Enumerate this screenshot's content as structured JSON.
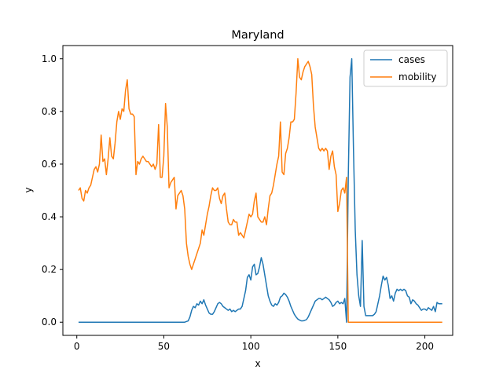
{
  "chart_data": {
    "type": "line",
    "title": "Maryland",
    "xlabel": "x",
    "ylabel": "y",
    "xlim": [
      -8,
      216
    ],
    "ylim": [
      -0.05,
      1.05
    ],
    "xticks": [
      0,
      50,
      100,
      150,
      200
    ],
    "yticks": [
      0.0,
      0.2,
      0.4,
      0.6,
      0.8,
      1.0
    ],
    "xtick_labels": [
      "0",
      "50",
      "100",
      "150",
      "200"
    ],
    "ytick_labels": [
      "0.0",
      "0.2",
      "0.4",
      "0.6",
      "0.8",
      "1.0"
    ],
    "legend_position": "top-right",
    "grid": false,
    "series": [
      {
        "name": "cases",
        "color": "#1f77b4",
        "points": [
          [
            1,
            0.0
          ],
          [
            10,
            0.0
          ],
          [
            20,
            0.0
          ],
          [
            30,
            0.0
          ],
          [
            40,
            0.0
          ],
          [
            50,
            0.0
          ],
          [
            60,
            0.0
          ],
          [
            62,
            0.0
          ],
          [
            64,
            0.005
          ],
          [
            65,
            0.02
          ],
          [
            66,
            0.045
          ],
          [
            67,
            0.06
          ],
          [
            68,
            0.055
          ],
          [
            69,
            0.07
          ],
          [
            70,
            0.065
          ],
          [
            71,
            0.08
          ],
          [
            72,
            0.07
          ],
          [
            73,
            0.085
          ],
          [
            74,
            0.065
          ],
          [
            75,
            0.05
          ],
          [
            76,
            0.035
          ],
          [
            77,
            0.03
          ],
          [
            78,
            0.03
          ],
          [
            79,
            0.04
          ],
          [
            80,
            0.055
          ],
          [
            81,
            0.07
          ],
          [
            82,
            0.075
          ],
          [
            83,
            0.07
          ],
          [
            84,
            0.06
          ],
          [
            85,
            0.055
          ],
          [
            86,
            0.05
          ],
          [
            87,
            0.045
          ],
          [
            88,
            0.05
          ],
          [
            89,
            0.04
          ],
          [
            90,
            0.045
          ],
          [
            91,
            0.04
          ],
          [
            92,
            0.045
          ],
          [
            93,
            0.05
          ],
          [
            94,
            0.05
          ],
          [
            95,
            0.06
          ],
          [
            96,
            0.09
          ],
          [
            97,
            0.12
          ],
          [
            98,
            0.17
          ],
          [
            99,
            0.18
          ],
          [
            100,
            0.16
          ],
          [
            101,
            0.21
          ],
          [
            102,
            0.22
          ],
          [
            103,
            0.18
          ],
          [
            104,
            0.185
          ],
          [
            105,
            0.21
          ],
          [
            106,
            0.245
          ],
          [
            107,
            0.22
          ],
          [
            108,
            0.18
          ],
          [
            109,
            0.14
          ],
          [
            110,
            0.1
          ],
          [
            111,
            0.08
          ],
          [
            112,
            0.065
          ],
          [
            113,
            0.06
          ],
          [
            114,
            0.07
          ],
          [
            115,
            0.065
          ],
          [
            116,
            0.075
          ],
          [
            117,
            0.095
          ],
          [
            118,
            0.1
          ],
          [
            119,
            0.11
          ],
          [
            120,
            0.105
          ],
          [
            121,
            0.095
          ],
          [
            122,
            0.08
          ],
          [
            123,
            0.06
          ],
          [
            124,
            0.045
          ],
          [
            125,
            0.03
          ],
          [
            126,
            0.02
          ],
          [
            127,
            0.012
          ],
          [
            128,
            0.008
          ],
          [
            129,
            0.005
          ],
          [
            130,
            0.005
          ],
          [
            131,
            0.007
          ],
          [
            132,
            0.01
          ],
          [
            133,
            0.02
          ],
          [
            134,
            0.035
          ],
          [
            135,
            0.05
          ],
          [
            136,
            0.065
          ],
          [
            137,
            0.08
          ],
          [
            138,
            0.085
          ],
          [
            139,
            0.09
          ],
          [
            140,
            0.09
          ],
          [
            141,
            0.085
          ],
          [
            142,
            0.09
          ],
          [
            143,
            0.095
          ],
          [
            144,
            0.09
          ],
          [
            145,
            0.085
          ],
          [
            146,
            0.075
          ],
          [
            147,
            0.06
          ],
          [
            148,
            0.065
          ],
          [
            149,
            0.075
          ],
          [
            150,
            0.08
          ],
          [
            151,
            0.07
          ],
          [
            152,
            0.075
          ],
          [
            153,
            0.07
          ],
          [
            154,
            0.09
          ],
          [
            155,
            0.0
          ],
          [
            156,
            0.55
          ],
          [
            157,
            0.93
          ],
          [
            158,
            1.0
          ],
          [
            159,
            0.65
          ],
          [
            160,
            0.35
          ],
          [
            161,
            0.18
          ],
          [
            162,
            0.1
          ],
          [
            163,
            0.06
          ],
          [
            164,
            0.31
          ],
          [
            165,
            0.06
          ],
          [
            166,
            0.025
          ],
          [
            167,
            0.025
          ],
          [
            168,
            0.025
          ],
          [
            169,
            0.025
          ],
          [
            170,
            0.025
          ],
          [
            171,
            0.03
          ],
          [
            172,
            0.04
          ],
          [
            173,
            0.07
          ],
          [
            174,
            0.1
          ],
          [
            175,
            0.14
          ],
          [
            176,
            0.175
          ],
          [
            177,
            0.16
          ],
          [
            178,
            0.17
          ],
          [
            179,
            0.14
          ],
          [
            180,
            0.09
          ],
          [
            181,
            0.1
          ],
          [
            182,
            0.08
          ],
          [
            183,
            0.11
          ],
          [
            184,
            0.125
          ],
          [
            185,
            0.12
          ],
          [
            186,
            0.125
          ],
          [
            187,
            0.12
          ],
          [
            188,
            0.125
          ],
          [
            189,
            0.12
          ],
          [
            190,
            0.1
          ],
          [
            191,
            0.095
          ],
          [
            192,
            0.07
          ],
          [
            193,
            0.085
          ],
          [
            194,
            0.08
          ],
          [
            195,
            0.07
          ],
          [
            196,
            0.065
          ],
          [
            197,
            0.055
          ],
          [
            198,
            0.045
          ],
          [
            199,
            0.05
          ],
          [
            200,
            0.05
          ],
          [
            201,
            0.045
          ],
          [
            202,
            0.055
          ],
          [
            203,
            0.05
          ],
          [
            204,
            0.045
          ],
          [
            205,
            0.06
          ],
          [
            206,
            0.04
          ],
          [
            207,
            0.075
          ],
          [
            208,
            0.07
          ],
          [
            209,
            0.07
          ],
          [
            210,
            0.07
          ]
        ]
      },
      {
        "name": "mobility",
        "color": "#ff7f0e",
        "points": [
          [
            1,
            0.5
          ],
          [
            2,
            0.51
          ],
          [
            3,
            0.47
          ],
          [
            4,
            0.46
          ],
          [
            5,
            0.5
          ],
          [
            6,
            0.49
          ],
          [
            7,
            0.51
          ],
          [
            8,
            0.52
          ],
          [
            9,
            0.55
          ],
          [
            10,
            0.58
          ],
          [
            11,
            0.59
          ],
          [
            12,
            0.57
          ],
          [
            13,
            0.6
          ],
          [
            14,
            0.71
          ],
          [
            15,
            0.61
          ],
          [
            16,
            0.62
          ],
          [
            17,
            0.56
          ],
          [
            18,
            0.62
          ],
          [
            19,
            0.7
          ],
          [
            20,
            0.63
          ],
          [
            21,
            0.62
          ],
          [
            22,
            0.68
          ],
          [
            23,
            0.76
          ],
          [
            24,
            0.8
          ],
          [
            25,
            0.77
          ],
          [
            26,
            0.81
          ],
          [
            27,
            0.8
          ],
          [
            28,
            0.88
          ],
          [
            29,
            0.92
          ],
          [
            30,
            0.81
          ],
          [
            31,
            0.79
          ],
          [
            32,
            0.79
          ],
          [
            33,
            0.78
          ],
          [
            34,
            0.56
          ],
          [
            35,
            0.61
          ],
          [
            36,
            0.6
          ],
          [
            37,
            0.62
          ],
          [
            38,
            0.63
          ],
          [
            39,
            0.62
          ],
          [
            40,
            0.61
          ],
          [
            41,
            0.61
          ],
          [
            42,
            0.6
          ],
          [
            43,
            0.59
          ],
          [
            44,
            0.6
          ],
          [
            45,
            0.58
          ],
          [
            46,
            0.6
          ],
          [
            47,
            0.75
          ],
          [
            48,
            0.55
          ],
          [
            49,
            0.55
          ],
          [
            50,
            0.63
          ],
          [
            51,
            0.83
          ],
          [
            52,
            0.74
          ],
          [
            53,
            0.51
          ],
          [
            54,
            0.53
          ],
          [
            55,
            0.54
          ],
          [
            56,
            0.55
          ],
          [
            57,
            0.43
          ],
          [
            58,
            0.48
          ],
          [
            59,
            0.49
          ],
          [
            60,
            0.5
          ],
          [
            61,
            0.48
          ],
          [
            62,
            0.43
          ],
          [
            63,
            0.3
          ],
          [
            64,
            0.25
          ],
          [
            65,
            0.22
          ],
          [
            66,
            0.2
          ],
          [
            67,
            0.22
          ],
          [
            68,
            0.24
          ],
          [
            69,
            0.26
          ],
          [
            70,
            0.28
          ],
          [
            71,
            0.3
          ],
          [
            72,
            0.35
          ],
          [
            73,
            0.33
          ],
          [
            74,
            0.37
          ],
          [
            75,
            0.41
          ],
          [
            76,
            0.44
          ],
          [
            77,
            0.48
          ],
          [
            78,
            0.51
          ],
          [
            79,
            0.5
          ],
          [
            80,
            0.5
          ],
          [
            81,
            0.51
          ],
          [
            82,
            0.47
          ],
          [
            83,
            0.45
          ],
          [
            84,
            0.48
          ],
          [
            85,
            0.49
          ],
          [
            86,
            0.43
          ],
          [
            87,
            0.38
          ],
          [
            88,
            0.37
          ],
          [
            89,
            0.37
          ],
          [
            90,
            0.39
          ],
          [
            91,
            0.38
          ],
          [
            92,
            0.38
          ],
          [
            93,
            0.33
          ],
          [
            94,
            0.34
          ],
          [
            95,
            0.33
          ],
          [
            96,
            0.32
          ],
          [
            97,
            0.35
          ],
          [
            98,
            0.38
          ],
          [
            99,
            0.41
          ],
          [
            100,
            0.4
          ],
          [
            101,
            0.41
          ],
          [
            102,
            0.46
          ],
          [
            103,
            0.49
          ],
          [
            104,
            0.4
          ],
          [
            105,
            0.39
          ],
          [
            106,
            0.38
          ],
          [
            107,
            0.38
          ],
          [
            108,
            0.4
          ],
          [
            109,
            0.37
          ],
          [
            110,
            0.43
          ],
          [
            111,
            0.48
          ],
          [
            112,
            0.49
          ],
          [
            113,
            0.52
          ],
          [
            114,
            0.56
          ],
          [
            115,
            0.6
          ],
          [
            116,
            0.63
          ],
          [
            117,
            0.76
          ],
          [
            118,
            0.57
          ],
          [
            119,
            0.56
          ],
          [
            120,
            0.64
          ],
          [
            121,
            0.66
          ],
          [
            122,
            0.7
          ],
          [
            123,
            0.76
          ],
          [
            124,
            0.76
          ],
          [
            125,
            0.77
          ],
          [
            126,
            0.87
          ],
          [
            127,
            1.0
          ],
          [
            128,
            0.93
          ],
          [
            129,
            0.92
          ],
          [
            130,
            0.95
          ],
          [
            131,
            0.97
          ],
          [
            132,
            0.98
          ],
          [
            133,
            0.99
          ],
          [
            134,
            0.97
          ],
          [
            135,
            0.94
          ],
          [
            136,
            0.82
          ],
          [
            137,
            0.74
          ],
          [
            138,
            0.7
          ],
          [
            139,
            0.66
          ],
          [
            140,
            0.65
          ],
          [
            141,
            0.66
          ],
          [
            142,
            0.65
          ],
          [
            143,
            0.66
          ],
          [
            144,
            0.65
          ],
          [
            145,
            0.58
          ],
          [
            146,
            0.63
          ],
          [
            147,
            0.65
          ],
          [
            148,
            0.59
          ],
          [
            149,
            0.56
          ],
          [
            150,
            0.42
          ],
          [
            151,
            0.45
          ],
          [
            152,
            0.5
          ],
          [
            153,
            0.51
          ],
          [
            154,
            0.49
          ],
          [
            155,
            0.55
          ],
          [
            156,
            0.0
          ],
          [
            160,
            0.0
          ],
          [
            170,
            0.0
          ],
          [
            180,
            0.0
          ],
          [
            190,
            0.0
          ],
          [
            200,
            0.0
          ],
          [
            210,
            0.0
          ]
        ]
      }
    ]
  }
}
